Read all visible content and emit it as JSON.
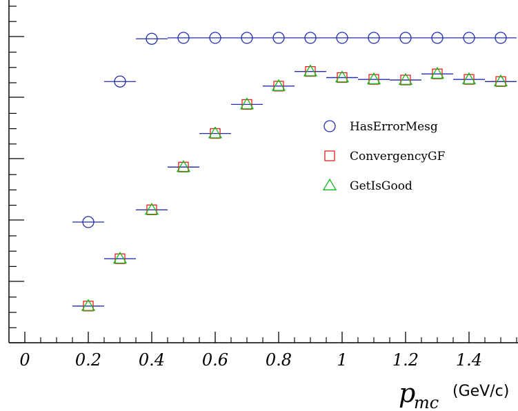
{
  "chart_data": {
    "type": "scatter",
    "title": "",
    "xlabel": "p_mc (GeV/c)",
    "xlabel_parts": {
      "symbol": "p",
      "subscript": "mc",
      "unit": "(GeV/c)"
    },
    "ylabel": "",
    "xlim": [
      -0.05,
      1.57
    ],
    "ylim": [
      0,
      1
    ],
    "x_ticks": [
      "0",
      "0.2",
      "0.4",
      "0.6",
      "0.8",
      "1",
      "1.2",
      "1.4"
    ],
    "x_tick_values": [
      0,
      0.2,
      0.4,
      0.6,
      0.8,
      1,
      1.2,
      1.4
    ],
    "x_error": 0.05,
    "grid": false,
    "legend_position": "right-middle",
    "series": [
      {
        "name": "HasErrorMesg",
        "marker": "circle",
        "color": "#1f2bb0",
        "x": [
          0.2,
          0.3,
          0.4,
          0.5,
          0.6,
          0.7,
          0.8,
          0.9,
          1.0,
          1.1,
          1.2,
          1.3,
          1.4,
          1.5
        ],
        "y": [
          0.395,
          0.855,
          0.995,
          0.998,
          0.998,
          0.998,
          0.998,
          0.998,
          0.998,
          0.998,
          0.998,
          0.998,
          0.998,
          0.998
        ]
      },
      {
        "name": "ConvergencyGF",
        "marker": "square",
        "color": "#e0201a",
        "x": [
          0.2,
          0.3,
          0.4,
          0.5,
          0.6,
          0.7,
          0.8,
          0.9,
          1.0,
          1.1,
          1.2,
          1.3,
          1.4,
          1.5
        ],
        "y": [
          0.12,
          0.275,
          0.435,
          0.575,
          0.685,
          0.78,
          0.84,
          0.888,
          0.868,
          0.862,
          0.86,
          0.88,
          0.862,
          0.855
        ]
      },
      {
        "name": "GetIsGood",
        "marker": "triangle",
        "color": "#12b81a",
        "x": [
          0.2,
          0.3,
          0.4,
          0.5,
          0.6,
          0.7,
          0.8,
          0.9,
          1.0,
          1.1,
          1.2,
          1.3,
          1.4,
          1.5
        ],
        "y": [
          0.12,
          0.275,
          0.435,
          0.575,
          0.685,
          0.78,
          0.84,
          0.888,
          0.868,
          0.862,
          0.86,
          0.88,
          0.862,
          0.855
        ]
      }
    ]
  }
}
